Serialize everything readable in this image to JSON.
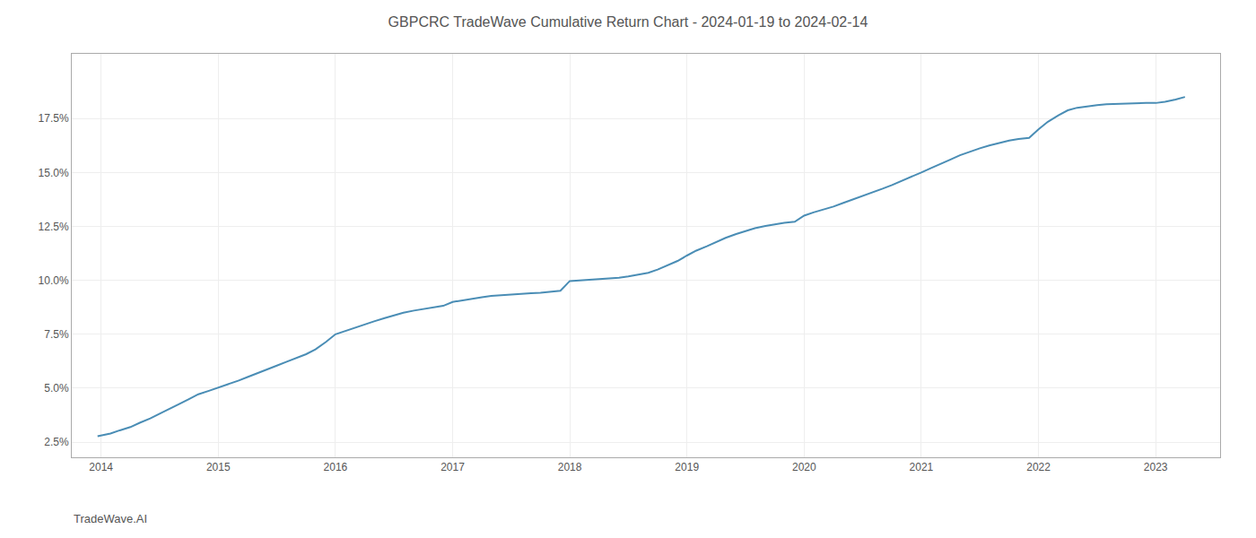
{
  "chart_data": {
    "type": "line",
    "title": "GBPCRC TradeWave Cumulative Return Chart - 2024-01-19 to 2024-02-14",
    "annotations": [
      "TradeWave.AI"
    ],
    "color": "#4a8db5",
    "grid": true,
    "x": [
      2013.97,
      2014.08,
      2014.16,
      2014.25,
      2014.33,
      2014.42,
      2014.5,
      2014.58,
      2014.67,
      2014.75,
      2014.83,
      2014.92,
      2015.0,
      2015.08,
      2015.17,
      2015.25,
      2015.33,
      2015.42,
      2015.5,
      2015.58,
      2015.67,
      2015.75,
      2015.83,
      2015.92,
      2016.0,
      2016.08,
      2016.17,
      2016.25,
      2016.33,
      2016.42,
      2016.5,
      2016.58,
      2016.67,
      2016.75,
      2016.83,
      2016.92,
      2017.0,
      2017.08,
      2017.17,
      2017.25,
      2017.33,
      2017.42,
      2017.5,
      2017.58,
      2017.67,
      2017.75,
      2017.83,
      2017.92,
      2018.0,
      2018.08,
      2018.17,
      2018.25,
      2018.33,
      2018.42,
      2018.5,
      2018.58,
      2018.67,
      2018.75,
      2018.83,
      2018.92,
      2019.0,
      2019.08,
      2019.17,
      2019.25,
      2019.33,
      2019.42,
      2019.5,
      2019.58,
      2019.67,
      2019.75,
      2019.83,
      2019.92,
      2020.0,
      2020.08,
      2020.17,
      2020.25,
      2020.33,
      2020.42,
      2020.5,
      2020.58,
      2020.67,
      2020.75,
      2020.83,
      2020.92,
      2021.0,
      2021.08,
      2021.17,
      2021.25,
      2021.33,
      2021.42,
      2021.5,
      2021.58,
      2021.67,
      2021.75,
      2021.83,
      2021.92,
      2022.0,
      2022.08,
      2022.17,
      2022.25,
      2022.33,
      2022.42,
      2022.5,
      2022.58,
      2022.67,
      2022.75,
      2022.83,
      2022.92,
      2023.0,
      2023.08,
      2023.17,
      2023.25
    ],
    "values": [
      2.78,
      2.9,
      3.05,
      3.2,
      3.4,
      3.6,
      3.82,
      4.05,
      4.28,
      4.5,
      4.72,
      4.88,
      5.02,
      5.18,
      5.35,
      5.52,
      5.7,
      5.88,
      6.05,
      6.22,
      6.4,
      6.58,
      6.8,
      7.15,
      7.5,
      7.65,
      7.8,
      7.95,
      8.1,
      8.25,
      8.38,
      8.5,
      8.6,
      8.68,
      8.75,
      8.82,
      9.0,
      9.08,
      9.15,
      9.22,
      9.28,
      9.32,
      9.35,
      9.38,
      9.4,
      9.43,
      9.47,
      9.52,
      9.97,
      10.0,
      10.03,
      10.05,
      10.08,
      10.12,
      10.18,
      10.25,
      10.35,
      10.5,
      10.68,
      10.9,
      11.15,
      11.38,
      11.58,
      11.78,
      11.97,
      12.15,
      12.3,
      12.42,
      12.52,
      12.6,
      12.67,
      12.72,
      13.0,
      13.15,
      13.28,
      13.42,
      13.58,
      13.75,
      13.92,
      14.08,
      14.25,
      14.42,
      14.6,
      14.8,
      15.0,
      15.2,
      15.4,
      15.6,
      15.8,
      15.98,
      16.12,
      16.25,
      16.38,
      16.48,
      16.55,
      16.6,
      17.0,
      17.35,
      17.65,
      17.88,
      18.0,
      18.08,
      18.12,
      18.16,
      18.18,
      18.2,
      18.22,
      18.22,
      18.22,
      18.28,
      18.38,
      18.5
    ],
    "xlim": [
      2013.75,
      2023.55
    ],
    "xticks": [
      2014,
      2015,
      2016,
      2017,
      2018,
      2019,
      2020,
      2021,
      2022,
      2023
    ],
    "ylim": [
      1.8,
      20.5
    ],
    "yticks": [
      {
        "value": 2.5,
        "label": "2.5%"
      },
      {
        "value": 5.0,
        "label": "5.0%"
      },
      {
        "value": 7.5,
        "label": "7.5%"
      },
      {
        "value": 10.0,
        "label": "10.0%"
      },
      {
        "value": 12.5,
        "label": "12.5%"
      },
      {
        "value": 15.0,
        "label": "15.0%"
      },
      {
        "value": 17.5,
        "label": "17.5%"
      }
    ]
  }
}
